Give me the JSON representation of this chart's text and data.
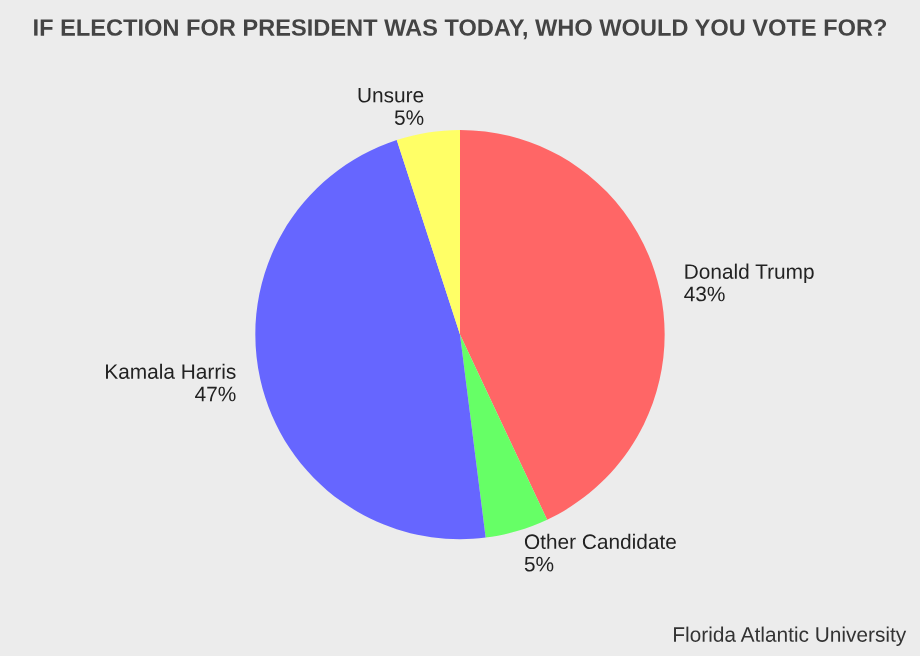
{
  "chart_data": {
    "type": "pie",
    "title": "IF ELECTION FOR PRESIDENT WAS TODAY, WHO WOULD YOU VOTE FOR?",
    "categories": [
      "Donald Trump",
      "Other Candidate",
      "Kamala Harris",
      "Unsure"
    ],
    "values": [
      43,
      5,
      47,
      5
    ],
    "value_labels": [
      "43%",
      "5%",
      "47%",
      "5%"
    ],
    "colors": [
      "#ff6666",
      "#66ff66",
      "#6666ff",
      "#ffff66"
    ],
    "annotations": [
      "Florida Atlantic University"
    ]
  }
}
